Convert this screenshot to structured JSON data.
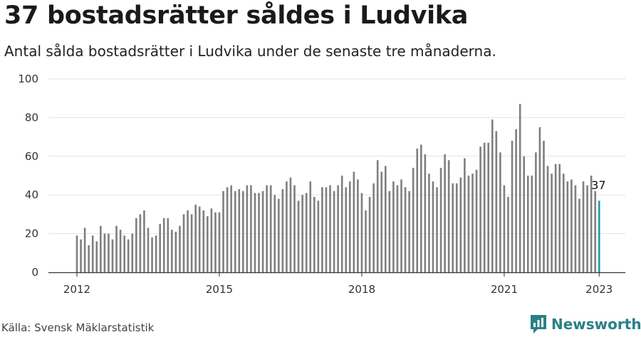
{
  "title": "37 bostadsrätter såldes i Ludvika",
  "subtitle": "Antal sålda bostadsrätter i Ludvika under de senaste tre månaderna.",
  "source": "Källa: Svensk Mäklarstatistik",
  "brand": {
    "name": "Newsworthy",
    "icon": "newsworthy-logo-icon",
    "color": "#2a7f86"
  },
  "chart_data": {
    "type": "bar",
    "x_start": "2012-01",
    "x_step": "month",
    "xticks": [
      "2012",
      "2015",
      "2018",
      "2021",
      "2023"
    ],
    "yticks": [
      0,
      20,
      40,
      60,
      80,
      100
    ],
    "ylim": [
      0,
      100
    ],
    "grid": true,
    "bar_color": "#7f7f7f",
    "highlight_color": "#1e9aa8",
    "highlight_index": 132,
    "annotation": {
      "text": "37",
      "index": 132
    },
    "values": [
      19,
      17,
      23,
      14,
      19,
      16,
      24,
      20,
      20,
      17,
      24,
      22,
      19,
      17,
      20,
      28,
      30,
      32,
      23,
      18,
      19,
      25,
      28,
      28,
      22,
      21,
      24,
      30,
      32,
      30,
      35,
      34,
      32,
      29,
      33,
      31,
      31,
      42,
      44,
      45,
      42,
      43,
      42,
      45,
      45,
      41,
      41,
      42,
      45,
      45,
      40,
      38,
      43,
      47,
      49,
      45,
      37,
      40,
      41,
      47,
      39,
      37,
      44,
      44,
      45,
      42,
      45,
      50,
      44,
      47,
      52,
      48,
      41,
      32,
      39,
      46,
      58,
      52,
      55,
      42,
      47,
      45,
      48,
      44,
      42,
      54,
      64,
      66,
      61,
      51,
      47,
      44,
      54,
      61,
      58,
      46,
      46,
      49,
      59,
      50,
      51,
      53,
      65,
      67,
      67,
      79,
      73,
      62,
      45,
      39,
      68,
      74,
      87,
      60,
      50,
      50,
      62,
      75,
      68,
      55,
      51,
      56,
      56,
      51,
      47,
      48,
      45,
      38,
      47,
      45,
      50,
      42,
      37
    ]
  }
}
